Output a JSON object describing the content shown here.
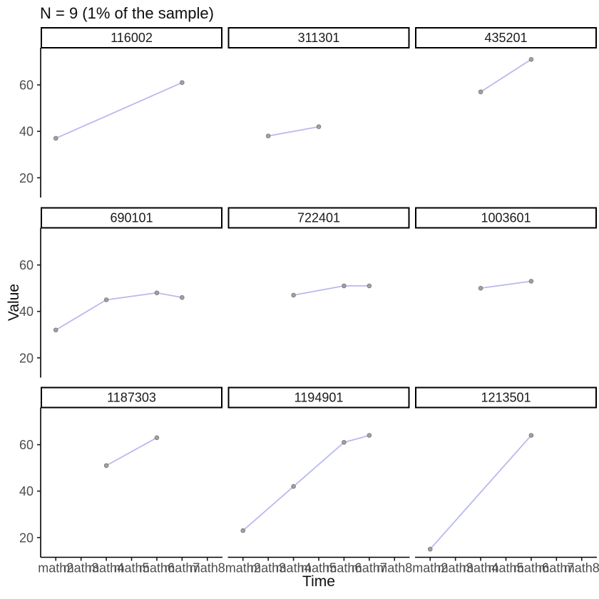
{
  "chart_data": {
    "type": "line",
    "title": "N = 9 (1% of the sample)",
    "xlabel": "Time",
    "ylabel": "Value",
    "categories": [
      "math2",
      "math3",
      "math4",
      "math5",
      "math6",
      "math7",
      "math8"
    ],
    "yticks": [
      20,
      40,
      60
    ],
    "ylim": [
      11.5,
      76
    ],
    "grid": false,
    "legend": false,
    "facet_layout": {
      "rows": 3,
      "cols": 3
    },
    "series": [
      {
        "name": "116002",
        "points": [
          {
            "x": "math2",
            "y": 37
          },
          {
            "x": "math7",
            "y": 61
          }
        ]
      },
      {
        "name": "311301",
        "points": [
          {
            "x": "math3",
            "y": 38
          },
          {
            "x": "math5",
            "y": 42
          }
        ]
      },
      {
        "name": "435201",
        "points": [
          {
            "x": "math4",
            "y": 57
          },
          {
            "x": "math6",
            "y": 71
          }
        ]
      },
      {
        "name": "690101",
        "points": [
          {
            "x": "math2",
            "y": 32
          },
          {
            "x": "math4",
            "y": 45
          },
          {
            "x": "math6",
            "y": 48
          },
          {
            "x": "math7",
            "y": 46
          }
        ]
      },
      {
        "name": "722401",
        "points": [
          {
            "x": "math4",
            "y": 47
          },
          {
            "x": "math6",
            "y": 51
          },
          {
            "x": "math7",
            "y": 51
          }
        ]
      },
      {
        "name": "1003601",
        "points": [
          {
            "x": "math4",
            "y": 50
          },
          {
            "x": "math6",
            "y": 53
          }
        ]
      },
      {
        "name": "1187303",
        "points": [
          {
            "x": "math4",
            "y": 51
          },
          {
            "x": "math6",
            "y": 63
          }
        ]
      },
      {
        "name": "1194901",
        "points": [
          {
            "x": "math2",
            "y": 23
          },
          {
            "x": "math4",
            "y": 42
          },
          {
            "x": "math6",
            "y": 61
          },
          {
            "x": "math7",
            "y": 64
          }
        ]
      },
      {
        "name": "1213501",
        "points": [
          {
            "x": "math2",
            "y": 15
          },
          {
            "x": "math6",
            "y": 64
          }
        ]
      }
    ],
    "colors": {
      "line": "#b9b9ef",
      "point_fill": "#9b9b9b",
      "point_stroke": "#7d7d7d",
      "axis_line": "#000000",
      "tick_mark": "#1a1a1a",
      "tick_label": "#4d4d4d",
      "strip_border": "#000000",
      "strip_background": "#ffffff",
      "strip_text": "#1a1a1a",
      "panel_background": "#ffffff"
    }
  }
}
